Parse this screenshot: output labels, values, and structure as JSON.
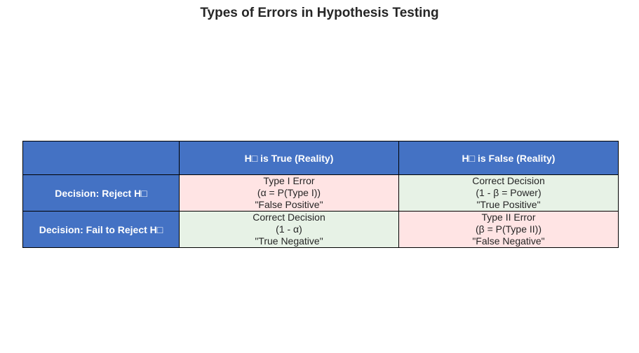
{
  "chart_data": {
    "type": "table",
    "title": "Types of Errors in Hypothesis Testing",
    "columns": [
      "",
      "H□ is True (Reality)",
      "H□ is False (Reality)"
    ],
    "rows": [
      {
        "header": "Decision: Reject H□",
        "cells": [
          {
            "kind": "error",
            "lines": [
              "Type I Error",
              "(α = P(Type I))",
              "\"False Positive\""
            ]
          },
          {
            "kind": "correct",
            "lines": [
              "Correct Decision",
              "(1 - β = Power)",
              "\"True Positive\""
            ]
          }
        ]
      },
      {
        "header": "Decision: Fail to Reject H□",
        "cells": [
          {
            "kind": "correct",
            "lines": [
              "Correct Decision",
              "(1 - α)",
              "\"True Negative\""
            ]
          },
          {
            "kind": "error",
            "lines": [
              "Type II Error",
              "(β = P(Type II))",
              "\"False Negative\""
            ]
          }
        ]
      }
    ],
    "colors": {
      "header": "#4472c4",
      "error": "#ffe4e4",
      "correct": "#e7f2e6"
    }
  }
}
